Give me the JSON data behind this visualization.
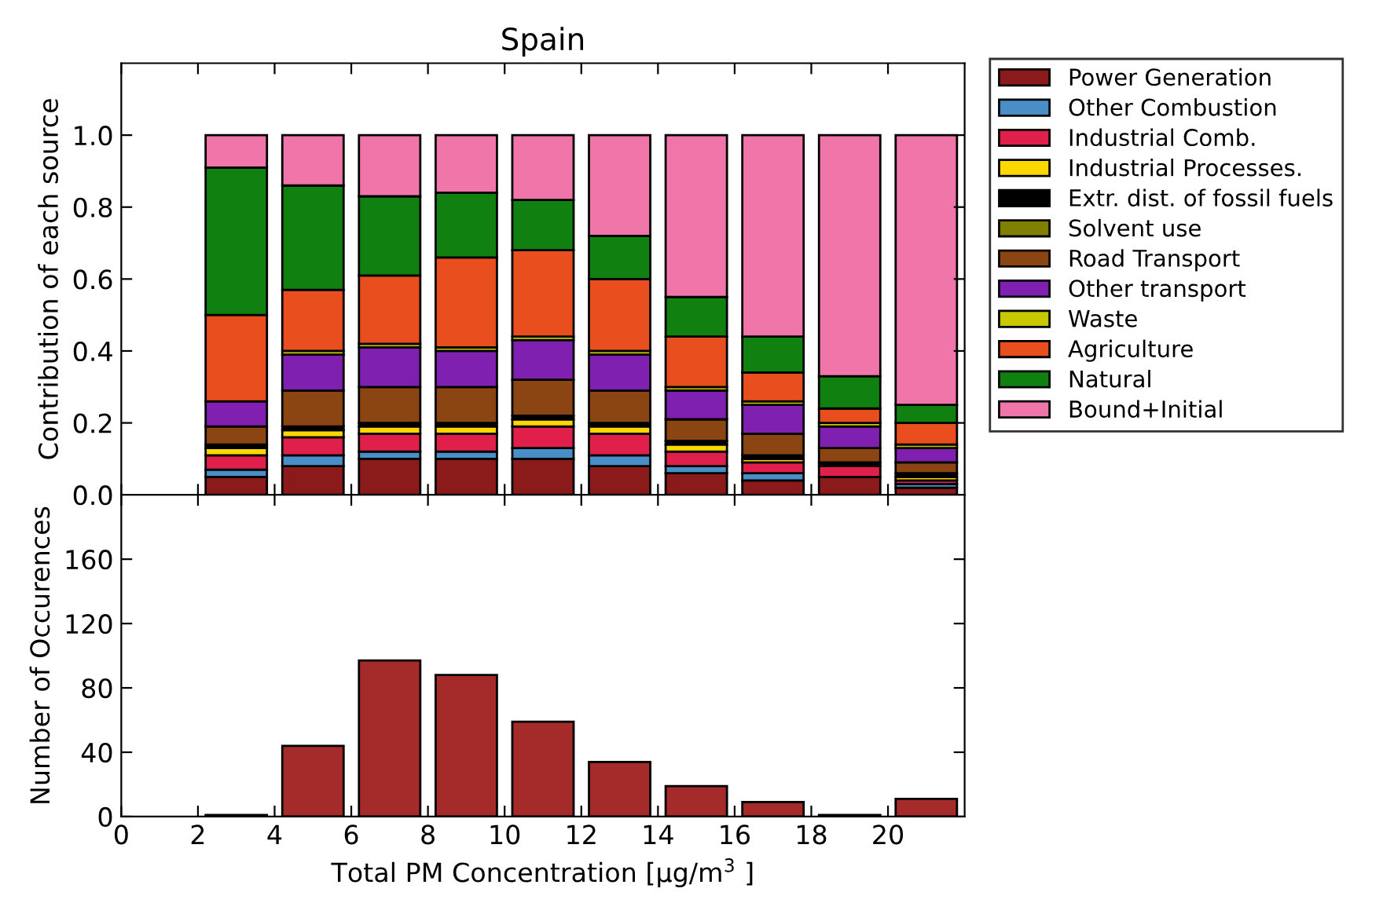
{
  "chart_data": [
    {
      "type": "bar",
      "title": "Spain",
      "ylabel": "Contribution of each source",
      "stacked": true,
      "x": [
        3,
        5,
        7,
        9,
        11,
        13,
        15,
        17,
        19,
        21
      ],
      "series": [
        {
          "name": "Power Generation",
          "color": "#8b1a1a",
          "values": [
            0.05,
            0.08,
            0.1,
            0.1,
            0.1,
            0.08,
            0.06,
            0.04,
            0.05,
            0.02
          ]
        },
        {
          "name": "Other Combustion",
          "color": "#4a8ec8",
          "values": [
            0.02,
            0.03,
            0.02,
            0.02,
            0.03,
            0.03,
            0.02,
            0.02,
            0,
            0.01
          ]
        },
        {
          "name": "Industrial Comb.",
          "color": "#e0204a",
          "values": [
            0.04,
            0.05,
            0.05,
            0.05,
            0.06,
            0.06,
            0.04,
            0.03,
            0.03,
            0.01
          ]
        },
        {
          "name": "Industrial Processes.",
          "color": "#ffd700",
          "values": [
            0.02,
            0.02,
            0.02,
            0.02,
            0.02,
            0.02,
            0.02,
            0.01,
            0,
            0.01
          ]
        },
        {
          "name": "Extr. dist. of fossil fuels",
          "color": "#000000",
          "values": [
            0.01,
            0.01,
            0.01,
            0.01,
            0.01,
            0.01,
            0.01,
            0.01,
            0.01,
            0.01
          ]
        },
        {
          "name": "Solvent use",
          "color": "#808000",
          "values": [
            0,
            0,
            0,
            0,
            0,
            0,
            0,
            0,
            0,
            0
          ]
        },
        {
          "name": "Road Transport",
          "color": "#8b4513",
          "values": [
            0.05,
            0.1,
            0.1,
            0.1,
            0.1,
            0.09,
            0.06,
            0.06,
            0.04,
            0.03
          ]
        },
        {
          "name": "Other transport",
          "color": "#8020b0",
          "values": [
            0.07,
            0.1,
            0.11,
            0.1,
            0.11,
            0.1,
            0.08,
            0.08,
            0.06,
            0.04
          ]
        },
        {
          "name": "Waste",
          "color": "#c8c800",
          "values": [
            0,
            0.01,
            0.01,
            0.01,
            0.01,
            0.01,
            0.01,
            0.01,
            0.01,
            0.01
          ]
        },
        {
          "name": "Agriculture",
          "color": "#e84e1e",
          "values": [
            0.24,
            0.17,
            0.19,
            0.25,
            0.24,
            0.2,
            0.14,
            0.08,
            0.04,
            0.06
          ]
        },
        {
          "name": "Natural",
          "color": "#108010",
          "values": [
            0.41,
            0.29,
            0.22,
            0.18,
            0.14,
            0.12,
            0.11,
            0.1,
            0.09,
            0.05
          ]
        },
        {
          "name": "Bound+Initial",
          "color": "#f075a8",
          "values": [
            0.09,
            0.14,
            0.17,
            0.16,
            0.18,
            0.28,
            0.45,
            0.56,
            0.67,
            0.75
          ]
        }
      ],
      "xlim": [
        0,
        22
      ],
      "xticks": [
        0,
        2,
        4,
        6,
        8,
        10,
        12,
        14,
        16,
        18,
        20
      ],
      "ylim": [
        0,
        1.2
      ],
      "yticks": [
        {
          "value": 0,
          "label": "0.0"
        },
        0.2,
        0.4,
        0.6,
        0.8,
        {
          "value": 1,
          "label": "1.0"
        }
      ],
      "tick_labels": "y",
      "legend": "right",
      "grid": false
    },
    {
      "type": "histogram",
      "xlabel": "Total PM Concentration [μg/m$^{3}$ ]",
      "ylabel": "Number of Occurences",
      "color": "#a52a2a",
      "bins": [
        2,
        4,
        6,
        8,
        10,
        12,
        14,
        16,
        18,
        20,
        22
      ],
      "values": [
        1,
        44,
        97,
        88,
        59,
        34,
        19,
        9,
        1,
        11
      ],
      "xlim": [
        0,
        22
      ],
      "xticks": [
        0,
        2,
        4,
        6,
        8,
        10,
        12,
        14,
        16,
        18,
        20
      ],
      "ylim": [
        0,
        200
      ],
      "yticks": [
        0,
        40,
        80,
        120,
        160
      ],
      "grid": false
    }
  ]
}
